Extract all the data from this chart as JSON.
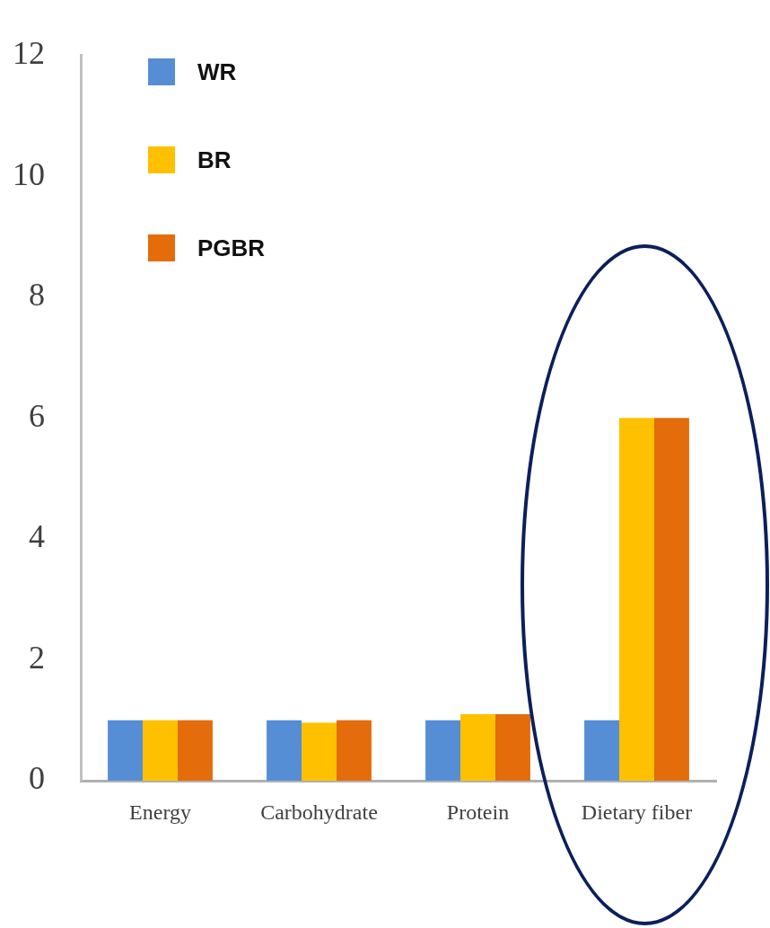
{
  "chart_data": {
    "type": "bar",
    "categories": [
      "Energy",
      "Carbohydrate",
      "Protein",
      "Dietary fiber"
    ],
    "series": [
      {
        "name": "WR",
        "color": "#558ed5",
        "values": [
          1,
          1,
          1,
          1
        ]
      },
      {
        "name": "BR",
        "color": "#ffc000",
        "values": [
          1,
          0.96,
          1.1,
          6
        ]
      },
      {
        "name": "PGBR",
        "color": "#e46c0a",
        "values": [
          1,
          1,
          1.1,
          6
        ]
      }
    ],
    "ylim": [
      0,
      12
    ],
    "yticks": [
      0,
      2,
      4,
      6,
      8,
      10,
      12
    ],
    "grid": false,
    "legend": "top left"
  }
}
